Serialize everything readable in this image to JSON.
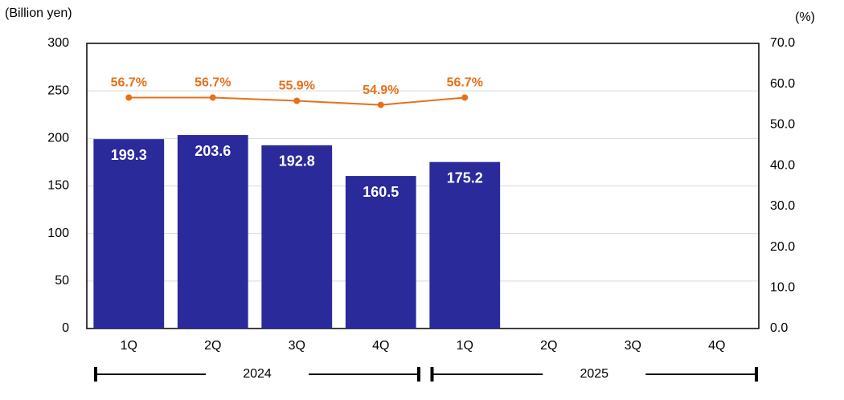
{
  "chart_data": {
    "type": "bar",
    "ylabel": "(Billion yen)",
    "y2label": "(%)",
    "categories": [
      "1Q",
      "2Q",
      "3Q",
      "4Q",
      "1Q",
      "2Q",
      "3Q",
      "4Q"
    ],
    "x_groups": [
      "2024",
      "2025"
    ],
    "series": [
      {
        "type": "bar",
        "color": "#2b2a9b",
        "values": [
          199.3,
          203.6,
          192.8,
          160.5,
          175.2,
          null,
          null,
          null
        ]
      },
      {
        "type": "line",
        "axis": "y2",
        "color": "#e8701a",
        "values": [
          56.7,
          56.7,
          55.9,
          54.9,
          56.7,
          null,
          null,
          null
        ],
        "value_labels": [
          "56.7%",
          "56.7%",
          "55.9%",
          "54.9%",
          "56.7%",
          null,
          null,
          null
        ]
      }
    ],
    "ylim": [
      0,
      300
    ],
    "yticks": [
      0,
      50,
      100,
      150,
      200,
      250,
      300
    ],
    "y2lim": [
      0,
      70
    ],
    "y2ticks": [
      {
        "value": 0,
        "label": "0.0"
      },
      {
        "value": 10,
        "label": "10.0"
      },
      {
        "value": 20,
        "label": "20.0"
      },
      {
        "value": 30,
        "label": "30.0"
      },
      {
        "value": 40,
        "label": "40.0"
      },
      {
        "value": 50,
        "label": "50.0"
      },
      {
        "value": 60,
        "label": "60.0"
      },
      {
        "value": 70,
        "label": "70.0"
      }
    ],
    "grid": true
  }
}
